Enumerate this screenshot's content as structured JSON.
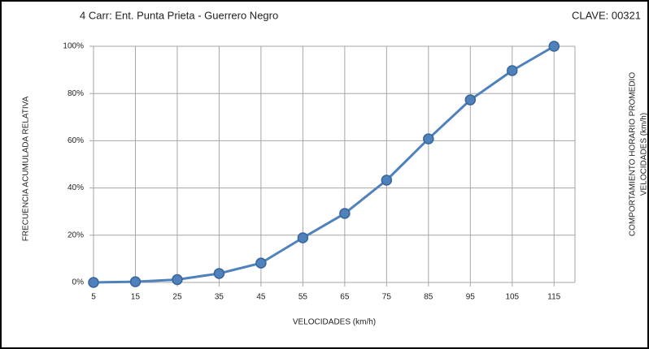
{
  "chart_data": {
    "type": "line",
    "title": "4 Carr: Ent. Punta Prieta - Guerrero Negro",
    "title_right": "CLAVE: 00321",
    "x_label": "VELOCIDADES  (km/h)",
    "y_label": "FRECUENCIA ACUMULADA RELATIVA",
    "side_label": [
      "COMPORTAMIENTO  HORARIO PROMEDIO",
      "VELOCIDADES  (km/h)"
    ],
    "x": [
      5,
      15,
      25,
      35,
      45,
      55,
      65,
      75,
      85,
      95,
      105,
      115
    ],
    "series": [
      {
        "name": "Frecuencia acumulada",
        "color": "#4f81bd",
        "values": [
          0,
          0.3,
          1.2,
          3.8,
          8.2,
          18.9,
          29.2,
          43.3,
          60.8,
          77.3,
          89.7,
          100
        ]
      }
    ],
    "xlim": [
      5,
      120
    ],
    "xticks": [
      5,
      15,
      25,
      35,
      45,
      55,
      65,
      75,
      85,
      95,
      105,
      115
    ],
    "ylim": [
      0,
      100
    ],
    "yticks": [
      {
        "value": 0,
        "label": "0%"
      },
      {
        "value": 20,
        "label": "20%"
      },
      {
        "value": 40,
        "label": "40%"
      },
      {
        "value": 60,
        "label": "60%"
      },
      {
        "value": 80,
        "label": "80%"
      },
      {
        "value": 100,
        "label": "100%"
      }
    ],
    "grid": true
  }
}
